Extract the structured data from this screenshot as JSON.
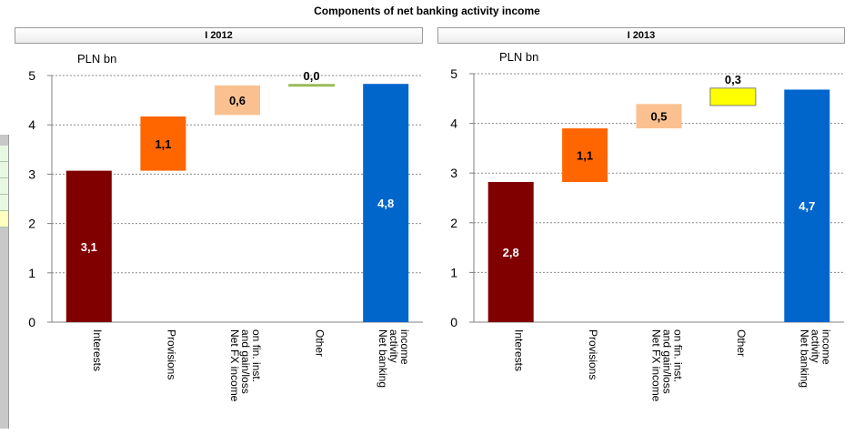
{
  "title": "Components of net banking activity income",
  "chart_data": [
    {
      "type": "bar",
      "panel_title": "I 2012",
      "unit_label": "PLN bn",
      "categories": [
        "Interests",
        "Provisions",
        "Net FX income and gain/loss on fin. inst.",
        "Other",
        "Net banking activity income"
      ],
      "tick_label_lines": [
        [
          "Interests"
        ],
        [
          "Provisions"
        ],
        [
          "Net FX income",
          "and gain/loss",
          "on fin. inst."
        ],
        [
          "Other"
        ],
        [
          "Net banking",
          "activity",
          "income"
        ]
      ],
      "bottoms": [
        0,
        3.07,
        4.2,
        4.8,
        0
      ],
      "values": [
        3.07,
        1.1,
        0.6,
        0.02,
        4.83
      ],
      "value_labels": [
        "3,1",
        "1,1",
        "0,6",
        "0,0",
        "4,8"
      ],
      "colors": [
        "#800000",
        "#ff6600",
        "#fac090",
        "#9bbb59",
        "#0066cc"
      ],
      "label_colors": [
        "#ffffff",
        "#000000",
        "#000000",
        "#000000",
        "#ffffff"
      ],
      "ylim": [
        0,
        5
      ],
      "yticks": [
        0,
        1,
        2,
        3,
        4,
        5
      ],
      "grid": true
    },
    {
      "type": "bar",
      "panel_title": "I 2013",
      "unit_label": "PLN bn",
      "categories": [
        "Interests",
        "Provisions",
        "Net FX income and gain/loss on fin. inst.",
        "Other",
        "Net banking activity income"
      ],
      "tick_label_lines": [
        [
          "Interests"
        ],
        [
          "Provisions"
        ],
        [
          "Net FX income",
          "and gain/loss",
          "on fin. inst."
        ],
        [
          "Other"
        ],
        [
          "Net banking",
          "activity",
          "income"
        ]
      ],
      "bottoms": [
        0,
        2.82,
        3.9,
        4.36,
        0
      ],
      "values": [
        2.82,
        1.08,
        0.49,
        0.35,
        4.68
      ],
      "value_labels": [
        "2,8",
        "1,1",
        "0,5",
        "0,3",
        "4,7"
      ],
      "colors": [
        "#800000",
        "#ff6600",
        "#fac090",
        "#ffff00",
        "#0066cc"
      ],
      "label_colors": [
        "#ffffff",
        "#000000",
        "#000000",
        "#000000",
        "#ffffff"
      ],
      "ylim": [
        0,
        5
      ],
      "yticks": [
        0,
        1,
        2,
        3,
        4,
        5
      ],
      "grid": true
    }
  ]
}
